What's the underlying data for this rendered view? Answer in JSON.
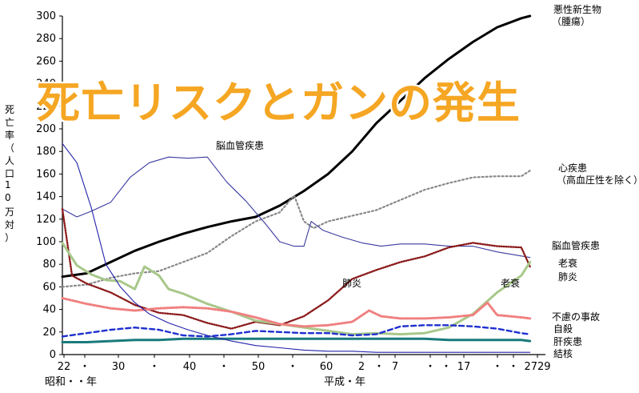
{
  "banner": "死亡リスクとガンの発生",
  "chart_data": {
    "type": "line",
    "ylabel": "死亡率（人口10万対）",
    "ylim": [
      0,
      300
    ],
    "yticks": [
      0,
      20,
      40,
      60,
      80,
      100,
      120,
      140,
      160,
      180,
      200,
      220,
      240,
      260,
      280,
      300
    ],
    "xlim": [
      22,
      29
    ],
    "xticks": [
      "22",
      "・",
      "30",
      "・",
      "40",
      "・",
      "50",
      "・",
      "60",
      "2",
      "・",
      "7",
      "・",
      "・",
      "17",
      "・",
      "・",
      "2729"
    ],
    "era_labels": [
      "昭和・・年",
      "平成・年"
    ],
    "series": [
      {
        "name": "悪性新生物（腫瘍）",
        "color": "#000000",
        "style": "solid-thick",
        "values": [
          [
            0,
            69
          ],
          [
            0.05,
            72
          ],
          [
            0.1,
            82
          ],
          [
            0.15,
            92
          ],
          [
            0.2,
            100
          ],
          [
            0.25,
            107
          ],
          [
            0.3,
            113
          ],
          [
            0.35,
            118
          ],
          [
            0.4,
            122
          ],
          [
            0.45,
            132
          ],
          [
            0.5,
            145
          ],
          [
            0.55,
            160
          ],
          [
            0.6,
            180
          ],
          [
            0.65,
            205
          ],
          [
            0.7,
            225
          ],
          [
            0.75,
            245
          ],
          [
            0.8,
            262
          ],
          [
            0.85,
            277
          ],
          [
            0.9,
            290
          ],
          [
            0.95,
            298
          ],
          [
            0.968,
            300
          ]
        ]
      },
      {
        "name": "心疾患（高血圧性を除く）",
        "color": "#888888",
        "style": "dotted",
        "values": [
          [
            0,
            60
          ],
          [
            0.05,
            62
          ],
          [
            0.1,
            68
          ],
          [
            0.15,
            72
          ],
          [
            0.2,
            74
          ],
          [
            0.25,
            82
          ],
          [
            0.3,
            90
          ],
          [
            0.35,
            105
          ],
          [
            0.4,
            118
          ],
          [
            0.45,
            126
          ],
          [
            0.48,
            141
          ],
          [
            0.5,
            118
          ],
          [
            0.52,
            112
          ],
          [
            0.55,
            118
          ],
          [
            0.6,
            123
          ],
          [
            0.65,
            128
          ],
          [
            0.7,
            137
          ],
          [
            0.75,
            146
          ],
          [
            0.8,
            152
          ],
          [
            0.85,
            157
          ],
          [
            0.9,
            158
          ],
          [
            0.95,
            158
          ],
          [
            0.968,
            163
          ]
        ]
      },
      {
        "name": "脳血管疾患",
        "color": "#3a3aa0",
        "style": "solid-thin",
        "values": [
          [
            0,
            129
          ],
          [
            0.03,
            122
          ],
          [
            0.06,
            127
          ],
          [
            0.1,
            135
          ],
          [
            0.14,
            157
          ],
          [
            0.18,
            170
          ],
          [
            0.22,
            175
          ],
          [
            0.26,
            174
          ],
          [
            0.3,
            175
          ],
          [
            0.34,
            153
          ],
          [
            0.38,
            136
          ],
          [
            0.42,
            116
          ],
          [
            0.45,
            100
          ],
          [
            0.48,
            96
          ],
          [
            0.5,
            96
          ],
          [
            0.515,
            118
          ],
          [
            0.54,
            110
          ],
          [
            0.58,
            104
          ],
          [
            0.62,
            99
          ],
          [
            0.66,
            96
          ],
          [
            0.7,
            98
          ],
          [
            0.75,
            98
          ],
          [
            0.8,
            96
          ],
          [
            0.85,
            96
          ],
          [
            0.9,
            91
          ],
          [
            0.968,
            86
          ]
        ]
      },
      {
        "name": "肺炎",
        "color": "#8b1a1a",
        "style": "solid-dotted",
        "values": [
          [
            0,
            129
          ],
          [
            0.02,
            70
          ],
          [
            0.05,
            63
          ],
          [
            0.1,
            55
          ],
          [
            0.15,
            44
          ],
          [
            0.2,
            37
          ],
          [
            0.25,
            35
          ],
          [
            0.3,
            28
          ],
          [
            0.35,
            23
          ],
          [
            0.4,
            29
          ],
          [
            0.45,
            26
          ],
          [
            0.5,
            34
          ],
          [
            0.55,
            48
          ],
          [
            0.6,
            67
          ],
          [
            0.65,
            75
          ],
          [
            0.7,
            82
          ],
          [
            0.75,
            87
          ],
          [
            0.8,
            95
          ],
          [
            0.85,
            99
          ],
          [
            0.9,
            96
          ],
          [
            0.95,
            95
          ],
          [
            0.968,
            78
          ]
        ]
      },
      {
        "name": "老衰",
        "color": "#a8c88a",
        "style": "solid-thick",
        "values": [
          [
            0,
            99
          ],
          [
            0.03,
            79
          ],
          [
            0.06,
            71
          ],
          [
            0.09,
            66
          ],
          [
            0.12,
            65
          ],
          [
            0.15,
            58
          ],
          [
            0.17,
            78
          ],
          [
            0.2,
            70
          ],
          [
            0.22,
            58
          ],
          [
            0.25,
            54
          ],
          [
            0.3,
            45
          ],
          [
            0.35,
            38
          ],
          [
            0.4,
            30
          ],
          [
            0.45,
            27
          ],
          [
            0.5,
            24
          ],
          [
            0.55,
            21
          ],
          [
            0.6,
            18
          ],
          [
            0.65,
            19
          ],
          [
            0.7,
            18
          ],
          [
            0.75,
            19
          ],
          [
            0.8,
            24
          ],
          [
            0.85,
            36
          ],
          [
            0.9,
            55
          ],
          [
            0.95,
            70
          ],
          [
            0.968,
            82
          ]
        ]
      },
      {
        "name": "不慮の事故",
        "color": "#f08080",
        "style": "dotted-thick",
        "values": [
          [
            0,
            50
          ],
          [
            0.05,
            45
          ],
          [
            0.1,
            41
          ],
          [
            0.15,
            39
          ],
          [
            0.2,
            41
          ],
          [
            0.25,
            42
          ],
          [
            0.3,
            41
          ],
          [
            0.35,
            38
          ],
          [
            0.4,
            33
          ],
          [
            0.45,
            27
          ],
          [
            0.5,
            25
          ],
          [
            0.55,
            26
          ],
          [
            0.6,
            29
          ],
          [
            0.635,
            39
          ],
          [
            0.66,
            34
          ],
          [
            0.7,
            32
          ],
          [
            0.75,
            32
          ],
          [
            0.8,
            33
          ],
          [
            0.85,
            35
          ],
          [
            0.88,
            46
          ],
          [
            0.9,
            35
          ],
          [
            0.95,
            33
          ],
          [
            0.968,
            32
          ]
        ]
      },
      {
        "name": "自殺",
        "color": "#1f2fd0",
        "style": "dashed",
        "values": [
          [
            0,
            16
          ],
          [
            0.05,
            19
          ],
          [
            0.1,
            22
          ],
          [
            0.15,
            24
          ],
          [
            0.2,
            22
          ],
          [
            0.25,
            17
          ],
          [
            0.3,
            16
          ],
          [
            0.35,
            18
          ],
          [
            0.4,
            21
          ],
          [
            0.45,
            20
          ],
          [
            0.5,
            19
          ],
          [
            0.55,
            19
          ],
          [
            0.6,
            17
          ],
          [
            0.65,
            18
          ],
          [
            0.7,
            25
          ],
          [
            0.75,
            26
          ],
          [
            0.8,
            26
          ],
          [
            0.85,
            25
          ],
          [
            0.9,
            23
          ],
          [
            0.95,
            19
          ],
          [
            0.968,
            18
          ]
        ]
      },
      {
        "name": "肝疾患",
        "color": "#1a7a7a",
        "style": "solid-thick",
        "values": [
          [
            0,
            11
          ],
          [
            0.05,
            11
          ],
          [
            0.1,
            12
          ],
          [
            0.15,
            13
          ],
          [
            0.2,
            13
          ],
          [
            0.25,
            14
          ],
          [
            0.3,
            14
          ],
          [
            0.35,
            14
          ],
          [
            0.4,
            14
          ],
          [
            0.45,
            14
          ],
          [
            0.5,
            14
          ],
          [
            0.55,
            14
          ],
          [
            0.6,
            14
          ],
          [
            0.65,
            14
          ],
          [
            0.7,
            14
          ],
          [
            0.75,
            14
          ],
          [
            0.8,
            13
          ],
          [
            0.85,
            13
          ],
          [
            0.9,
            13
          ],
          [
            0.95,
            13
          ],
          [
            0.968,
            12
          ]
        ]
      },
      {
        "name": "結核",
        "color": "#2222aa",
        "style": "solid-thin",
        "values": [
          [
            0,
            187
          ],
          [
            0.03,
            170
          ],
          [
            0.06,
            130
          ],
          [
            0.09,
            80
          ],
          [
            0.12,
            60
          ],
          [
            0.15,
            46
          ],
          [
            0.18,
            36
          ],
          [
            0.22,
            28
          ],
          [
            0.26,
            22
          ],
          [
            0.3,
            17
          ],
          [
            0.35,
            12
          ],
          [
            0.4,
            8
          ],
          [
            0.45,
            6
          ],
          [
            0.5,
            4
          ],
          [
            0.55,
            3
          ],
          [
            0.6,
            3
          ],
          [
            0.65,
            2
          ],
          [
            0.7,
            2
          ],
          [
            0.75,
            2
          ],
          [
            0.8,
            2
          ],
          [
            0.9,
            2
          ],
          [
            0.968,
            2
          ]
        ]
      }
    ],
    "annotations": [
      {
        "text": "脳血管疾患",
        "series": "脳血管疾患"
      },
      {
        "text": "肺炎",
        "series": "肺炎"
      },
      {
        "text": "老衰",
        "series": "老衰"
      }
    ],
    "legend_placement": "right-end",
    "grid": false
  }
}
